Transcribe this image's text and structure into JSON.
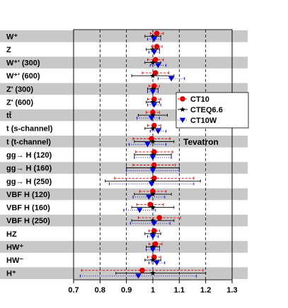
{
  "chart_data": {
    "type": "scatter",
    "orientation": "horizontal-error-bars",
    "title": "",
    "xlabel": "",
    "ylabel": "",
    "xlim": [
      0.7,
      1.3
    ],
    "xticks": [
      "0.7",
      "0.8",
      "0.9",
      "1",
      "1.1",
      "1.2",
      "1.3"
    ],
    "grid": "dashed vertical at each tick",
    "row_shading": "alternating grey bands",
    "annotation": "Tevatron",
    "legend_position": "right",
    "categories": [
      "W⁺",
      "Z",
      "W⁺' (300)",
      "W⁺' (600)",
      "Z' (300)",
      "Z' (600)",
      "tt̄",
      "t (s-channel)",
      "t (t-channel)",
      "gg→ H (120)",
      "gg→ H (160)",
      "gg→ H (250)",
      "VBF H (120)",
      "VBF H (160)",
      "VBF H (250)",
      "HZ",
      "HW⁺",
      "HW⁻",
      "H⁺"
    ],
    "series": [
      {
        "name": "CT10",
        "color": "#e00000",
        "marker": "circle",
        "line": "dashed",
        "values": [
          1.015,
          1.015,
          1.01,
          1.01,
          1.005,
          1.005,
          1.0,
          1.005,
          0.995,
          1.005,
          1.005,
          1.005,
          1.0,
          0.99,
          1.025,
          1.005,
          1.01,
          1.005,
          0.96
        ],
        "err_low": [
          0.025,
          0.02,
          0.03,
          0.05,
          0.02,
          0.025,
          0.025,
          0.025,
          0.07,
          0.07,
          0.08,
          0.15,
          0.05,
          0.05,
          0.08,
          0.02,
          0.025,
          0.025,
          0.23
        ],
        "err_high": [
          0.025,
          0.02,
          0.03,
          0.05,
          0.02,
          0.025,
          0.025,
          0.025,
          0.07,
          0.07,
          0.08,
          0.15,
          0.05,
          0.05,
          0.08,
          0.02,
          0.025,
          0.025,
          0.23
        ]
      },
      {
        "name": "CTEQ6.6",
        "color": "#000000",
        "marker": "star",
        "line": "solid",
        "values": [
          1.0,
          1.0,
          1.0,
          1.0,
          1.0,
          1.0,
          1.0,
          1.0,
          1.0,
          1.0,
          1.0,
          1.0,
          1.0,
          1.0,
          1.0,
          1.0,
          1.0,
          1.0,
          1.0
        ],
        "err_low": [
          0.03,
          0.025,
          0.03,
          0.08,
          0.02,
          0.025,
          0.055,
          0.03,
          0.07,
          0.07,
          0.1,
          0.18,
          0.07,
          0.08,
          0.08,
          0.03,
          0.025,
          0.03,
          0.14
        ],
        "err_high": [
          0.03,
          0.025,
          0.03,
          0.08,
          0.02,
          0.025,
          0.055,
          0.03,
          0.08,
          0.07,
          0.1,
          0.18,
          0.07,
          0.08,
          0.08,
          0.03,
          0.025,
          0.03,
          0.2
        ]
      },
      {
        "name": "CT10W",
        "color": "#0000dd",
        "marker": "triangle-down",
        "line": "dotted",
        "values": [
          1.005,
          1.005,
          1.02,
          1.07,
          1.0,
          1.005,
          0.995,
          1.02,
          0.98,
          1.0,
          1.0,
          0.995,
          0.985,
          0.95,
          1.005,
          1.0,
          1.0,
          1.015,
          0.945
        ],
        "err_low": [
          0.025,
          0.02,
          0.03,
          0.05,
          0.02,
          0.025,
          0.055,
          0.03,
          0.07,
          0.07,
          0.1,
          0.16,
          0.06,
          0.06,
          0.09,
          0.02,
          0.025,
          0.03,
          0.22
        ],
        "err_high": [
          0.025,
          0.02,
          0.03,
          0.05,
          0.02,
          0.025,
          0.03,
          0.03,
          0.07,
          0.07,
          0.1,
          0.16,
          0.06,
          0.06,
          0.06,
          0.02,
          0.025,
          0.03,
          0.22
        ]
      }
    ]
  }
}
